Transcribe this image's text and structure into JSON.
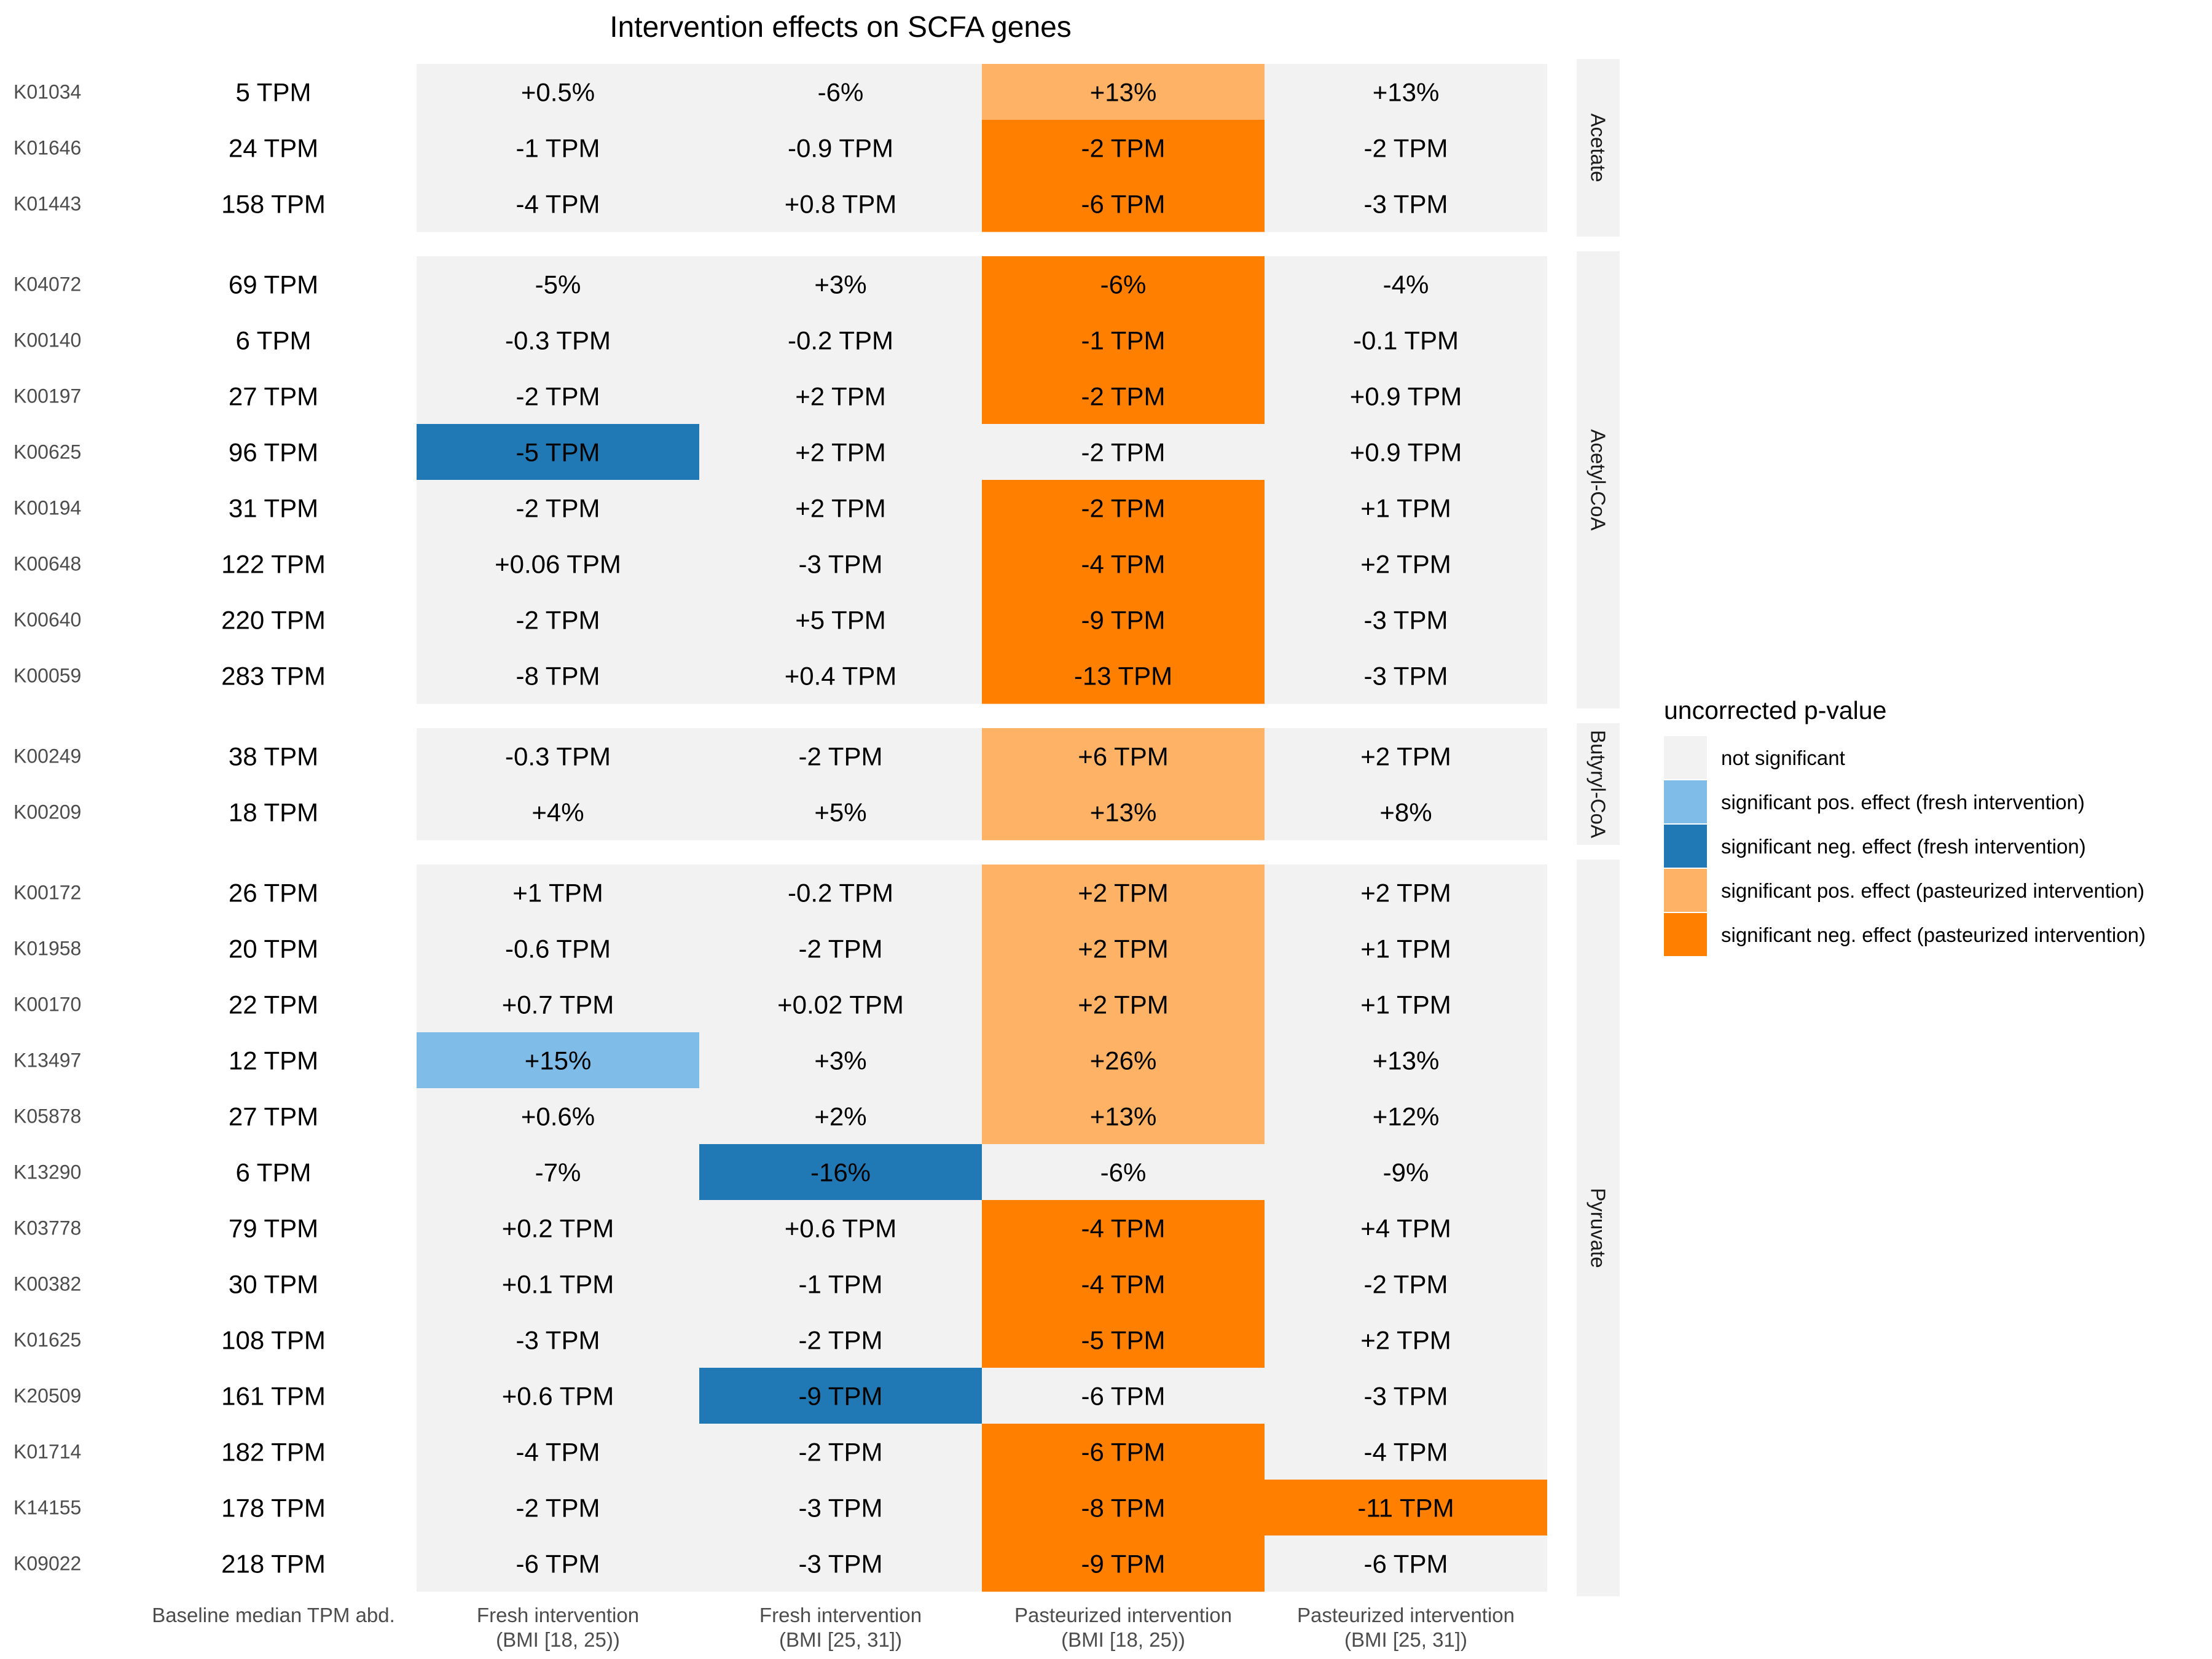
{
  "chart_data": {
    "type": "heatmap",
    "title": "Intervention effects on SCFA genes",
    "baseline_column_label": "Baseline median TPM abd.",
    "columns": [
      {
        "line1": "Fresh intervention",
        "line2": "(BMI [18, 25))",
        "group": "fresh"
      },
      {
        "line1": "Fresh intervention",
        "line2": "(BMI [25, 31])",
        "group": "fresh"
      },
      {
        "line1": "Pasteurized intervention",
        "line2": "(BMI [18, 25))",
        "group": "pasteurized"
      },
      {
        "line1": "Pasteurized intervention",
        "line2": "(BMI [25, 31])",
        "group": "pasteurized"
      }
    ],
    "panels": [
      {
        "name": "Acetate",
        "rows": [
          {
            "ko": "K01034",
            "baseline": "5 TPM",
            "cells": [
              "+0.5%",
              "-6%",
              "+13%",
              "+13%"
            ],
            "status": [
              "ns",
              "ns",
              "pos_past",
              "ns"
            ]
          },
          {
            "ko": "K01646",
            "baseline": "24 TPM",
            "cells": [
              "-1 TPM",
              "-0.9 TPM",
              "-2 TPM",
              "-2 TPM"
            ],
            "status": [
              "ns",
              "ns",
              "neg_past",
              "ns"
            ]
          },
          {
            "ko": "K01443",
            "baseline": "158 TPM",
            "cells": [
              "-4 TPM",
              "+0.8 TPM",
              "-6 TPM",
              "-3 TPM"
            ],
            "status": [
              "ns",
              "ns",
              "neg_past",
              "ns"
            ]
          }
        ]
      },
      {
        "name": "Acetyl-CoA",
        "rows": [
          {
            "ko": "K04072",
            "baseline": "69 TPM",
            "cells": [
              "-5%",
              "+3%",
              "-6%",
              "-4%"
            ],
            "status": [
              "ns",
              "ns",
              "neg_past",
              "ns"
            ]
          },
          {
            "ko": "K00140",
            "baseline": "6 TPM",
            "cells": [
              "-0.3 TPM",
              "-0.2 TPM",
              "-1 TPM",
              "-0.1 TPM"
            ],
            "status": [
              "ns",
              "ns",
              "neg_past",
              "ns"
            ]
          },
          {
            "ko": "K00197",
            "baseline": "27 TPM",
            "cells": [
              "-2 TPM",
              "+2 TPM",
              "-2 TPM",
              "+0.9 TPM"
            ],
            "status": [
              "ns",
              "ns",
              "neg_past",
              "ns"
            ]
          },
          {
            "ko": "K00625",
            "baseline": "96 TPM",
            "cells": [
              "-5 TPM",
              "+2 TPM",
              "-2 TPM",
              "+0.9 TPM"
            ],
            "status": [
              "neg_fresh",
              "ns",
              "ns",
              "ns"
            ]
          },
          {
            "ko": "K00194",
            "baseline": "31 TPM",
            "cells": [
              "-2 TPM",
              "+2 TPM",
              "-2 TPM",
              "+1 TPM"
            ],
            "status": [
              "ns",
              "ns",
              "neg_past",
              "ns"
            ]
          },
          {
            "ko": "K00648",
            "baseline": "122 TPM",
            "cells": [
              "+0.06 TPM",
              "-3 TPM",
              "-4 TPM",
              "+2 TPM"
            ],
            "status": [
              "ns",
              "ns",
              "neg_past",
              "ns"
            ]
          },
          {
            "ko": "K00640",
            "baseline": "220 TPM",
            "cells": [
              "-2 TPM",
              "+5 TPM",
              "-9 TPM",
              "-3 TPM"
            ],
            "status": [
              "ns",
              "ns",
              "neg_past",
              "ns"
            ]
          },
          {
            "ko": "K00059",
            "baseline": "283 TPM",
            "cells": [
              "-8 TPM",
              "+0.4 TPM",
              "-13 TPM",
              "-3 TPM"
            ],
            "status": [
              "ns",
              "ns",
              "neg_past",
              "ns"
            ]
          }
        ]
      },
      {
        "name": "Butyryl-CoA",
        "rows": [
          {
            "ko": "K00249",
            "baseline": "38 TPM",
            "cells": [
              "-0.3 TPM",
              "-2 TPM",
              "+6 TPM",
              "+2 TPM"
            ],
            "status": [
              "ns",
              "ns",
              "pos_past",
              "ns"
            ]
          },
          {
            "ko": "K00209",
            "baseline": "18 TPM",
            "cells": [
              "+4%",
              "+5%",
              "+13%",
              "+8%"
            ],
            "status": [
              "ns",
              "ns",
              "pos_past",
              "ns"
            ]
          }
        ]
      },
      {
        "name": "Pyruvate",
        "rows": [
          {
            "ko": "K00172",
            "baseline": "26 TPM",
            "cells": [
              "+1 TPM",
              "-0.2 TPM",
              "+2 TPM",
              "+2 TPM"
            ],
            "status": [
              "ns",
              "ns",
              "pos_past",
              "ns"
            ]
          },
          {
            "ko": "K01958",
            "baseline": "20 TPM",
            "cells": [
              "-0.6 TPM",
              "-2 TPM",
              "+2 TPM",
              "+1 TPM"
            ],
            "status": [
              "ns",
              "ns",
              "pos_past",
              "ns"
            ]
          },
          {
            "ko": "K00170",
            "baseline": "22 TPM",
            "cells": [
              "+0.7 TPM",
              "+0.02 TPM",
              "+2 TPM",
              "+1 TPM"
            ],
            "status": [
              "ns",
              "ns",
              "pos_past",
              "ns"
            ]
          },
          {
            "ko": "K13497",
            "baseline": "12 TPM",
            "cells": [
              "+15%",
              "+3%",
              "+26%",
              "+13%"
            ],
            "status": [
              "pos_fresh",
              "ns",
              "pos_past",
              "ns"
            ]
          },
          {
            "ko": "K05878",
            "baseline": "27 TPM",
            "cells": [
              "+0.6%",
              "+2%",
              "+13%",
              "+12%"
            ],
            "status": [
              "ns",
              "ns",
              "pos_past",
              "ns"
            ]
          },
          {
            "ko": "K13290",
            "baseline": "6 TPM",
            "cells": [
              "-7%",
              "-16%",
              "-6%",
              "-9%"
            ],
            "status": [
              "ns",
              "neg_fresh",
              "ns",
              "ns"
            ]
          },
          {
            "ko": "K03778",
            "baseline": "79 TPM",
            "cells": [
              "+0.2 TPM",
              "+0.6 TPM",
              "-4 TPM",
              "+4 TPM"
            ],
            "status": [
              "ns",
              "ns",
              "neg_past",
              "ns"
            ]
          },
          {
            "ko": "K00382",
            "baseline": "30 TPM",
            "cells": [
              "+0.1 TPM",
              "-1 TPM",
              "-4 TPM",
              "-2 TPM"
            ],
            "status": [
              "ns",
              "ns",
              "neg_past",
              "ns"
            ]
          },
          {
            "ko": "K01625",
            "baseline": "108 TPM",
            "cells": [
              "-3 TPM",
              "-2 TPM",
              "-5 TPM",
              "+2 TPM"
            ],
            "status": [
              "ns",
              "ns",
              "neg_past",
              "ns"
            ]
          },
          {
            "ko": "K20509",
            "baseline": "161 TPM",
            "cells": [
              "+0.6 TPM",
              "-9 TPM",
              "-6 TPM",
              "-3 TPM"
            ],
            "status": [
              "ns",
              "neg_fresh",
              "ns",
              "ns"
            ]
          },
          {
            "ko": "K01714",
            "baseline": "182 TPM",
            "cells": [
              "-4 TPM",
              "-2 TPM",
              "-6 TPM",
              "-4 TPM"
            ],
            "status": [
              "ns",
              "ns",
              "neg_past",
              "ns"
            ]
          },
          {
            "ko": "K14155",
            "baseline": "178 TPM",
            "cells": [
              "-2 TPM",
              "-3 TPM",
              "-8 TPM",
              "-11 TPM"
            ],
            "status": [
              "ns",
              "ns",
              "neg_past",
              "neg_past"
            ]
          },
          {
            "ko": "K09022",
            "baseline": "218 TPM",
            "cells": [
              "-6 TPM",
              "-3 TPM",
              "-9 TPM",
              "-6 TPM"
            ],
            "status": [
              "ns",
              "ns",
              "neg_past",
              "ns"
            ]
          }
        ]
      }
    ],
    "legend": {
      "title": "uncorrected p-value",
      "placement": "right",
      "entries": [
        {
          "key": "ns",
          "label": "not significant",
          "color": "#f2f2f2"
        },
        {
          "key": "pos_fresh",
          "label": "significant pos. effect (fresh intervention)",
          "color": "#7fbce8"
        },
        {
          "key": "neg_fresh",
          "label": "significant neg. effect (fresh intervention)",
          "color": "#2079b4"
        },
        {
          "key": "pos_past",
          "label": "significant pos. effect (pasteurized intervention)",
          "color": "#fdb266"
        },
        {
          "key": "neg_past",
          "label": "significant neg. effect (pasteurized intervention)",
          "color": "#ff7f00"
        }
      ]
    },
    "strip_color": "#f2f2f2"
  }
}
